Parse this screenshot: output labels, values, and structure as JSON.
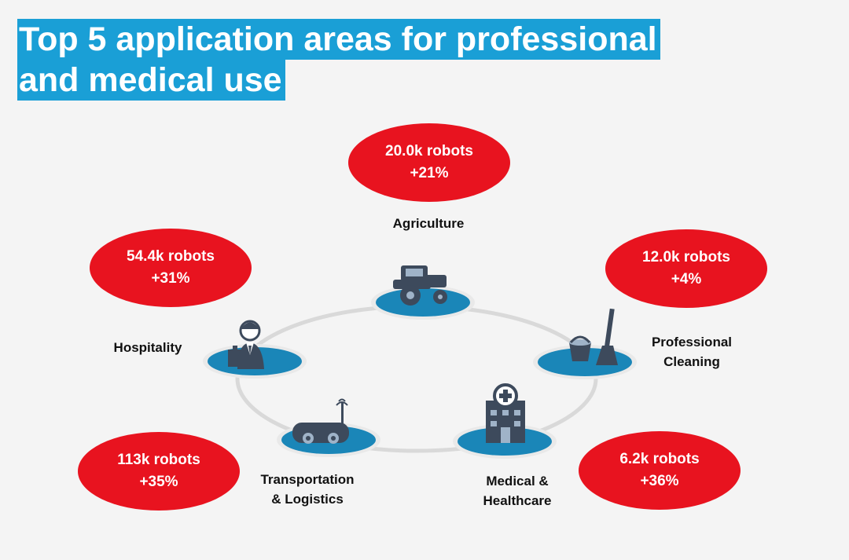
{
  "title": {
    "line1": "Top 5 application areas for professional",
    "line2": "and medical use"
  },
  "areas": [
    {
      "name": "Agriculture",
      "robots": "20.0k robots",
      "growth": "+21%",
      "icon": "tractor-icon"
    },
    {
      "name": "Professional\nCleaning",
      "robots": "12.0k robots",
      "growth": "+4%",
      "icon": "cleaning-bucket-mop-icon"
    },
    {
      "name": "Medical &\nHealthcare",
      "robots": "6.2k robots",
      "growth": "+36%",
      "icon": "hospital-building-icon"
    },
    {
      "name": "Transportation\n& Logistics",
      "robots": "113k robots",
      "growth": "+35%",
      "icon": "delivery-robot-icon"
    },
    {
      "name": "Hospitality",
      "robots": "54.4k robots",
      "growth": "+31%",
      "icon": "service-person-icon"
    }
  ],
  "colors": {
    "title_bg": "#1a9fd6",
    "bubble": "#e8131f",
    "platform": "#1a86b8",
    "icon": "#3d4a5c",
    "ring": "#d9d9d9"
  }
}
